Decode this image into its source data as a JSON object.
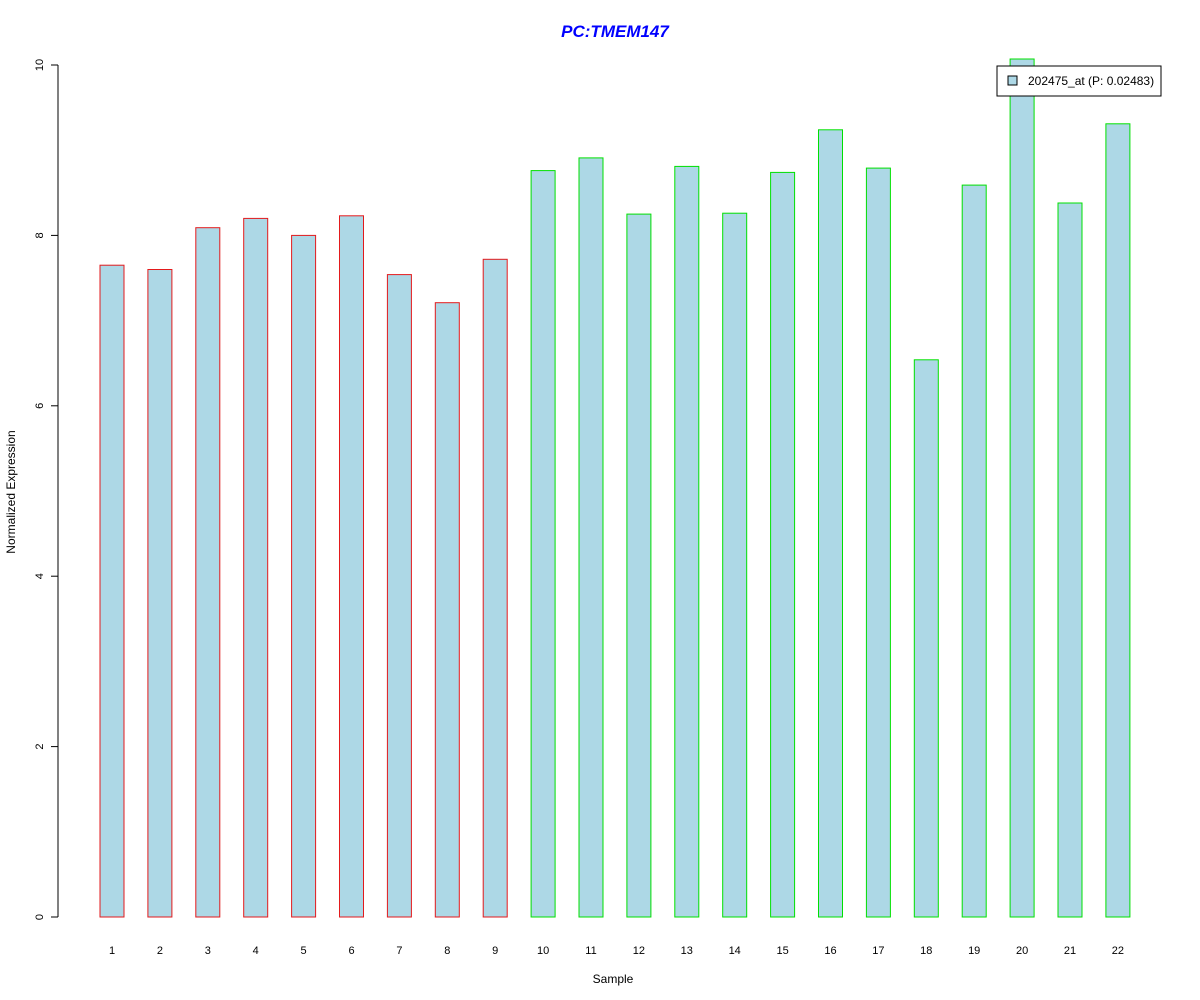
{
  "chart_data": {
    "type": "bar",
    "title": "PC:TMEM147",
    "xlabel": "Sample",
    "ylabel": "Normalized Expression",
    "ylim": [
      0,
      10
    ],
    "yticks": [
      0,
      2,
      4,
      6,
      8,
      10
    ],
    "grid": false,
    "legend_position": "top-right",
    "categories": [
      "1",
      "2",
      "3",
      "4",
      "5",
      "6",
      "7",
      "8",
      "9",
      "10",
      "11",
      "12",
      "13",
      "14",
      "15",
      "16",
      "17",
      "18",
      "19",
      "20",
      "21",
      "22"
    ],
    "series": [
      {
        "name": "202475_at (P: 0.02483)",
        "values": [
          7.65,
          7.6,
          8.09,
          8.2,
          8.0,
          8.23,
          7.54,
          7.21,
          7.72,
          8.76,
          8.91,
          8.25,
          8.81,
          8.26,
          8.74,
          9.24,
          8.79,
          6.54,
          8.59,
          10.07,
          8.38,
          9.31
        ]
      }
    ],
    "groups": [
      {
        "samples": [
          "1",
          "2",
          "3",
          "4",
          "5",
          "6",
          "7",
          "8",
          "9"
        ],
        "border_color": "#e31a1c"
      },
      {
        "samples": [
          "10",
          "11",
          "12",
          "13",
          "14",
          "15",
          "16",
          "17",
          "18",
          "19",
          "20",
          "21",
          "22"
        ],
        "border_color": "#00e000"
      }
    ],
    "colors": {
      "bar_fill": "#add8e6",
      "title": "#0000ff",
      "axis": "#000000"
    }
  }
}
